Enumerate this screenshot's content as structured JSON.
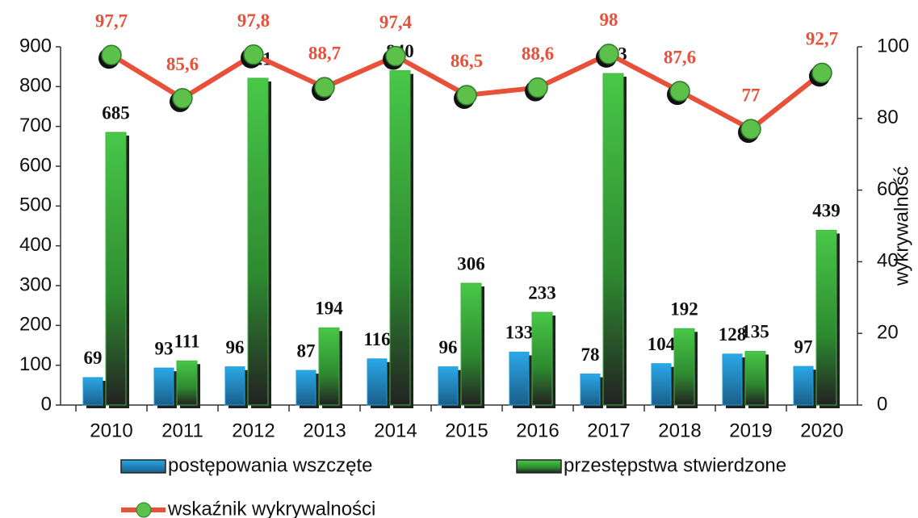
{
  "chart_data": {
    "type": "bar",
    "categories": [
      "2010",
      "2011",
      "2012",
      "2013",
      "2014",
      "2015",
      "2016",
      "2017",
      "2018",
      "2019",
      "2020"
    ],
    "series": [
      {
        "name": "postępowania wszczęte",
        "color": "#1e9fd8",
        "type": "bar",
        "values": [
          69,
          93,
          96,
          87,
          116,
          96,
          133,
          78,
          104,
          128,
          97
        ]
      },
      {
        "name": "przestępstwa stwierdzone",
        "color": "#3fb53f",
        "type": "bar",
        "values": [
          685,
          111,
          821,
          194,
          840,
          306,
          233,
          833,
          192,
          135,
          439
        ]
      },
      {
        "name": "wskaźnik wykrywalności",
        "color": "#e8503a",
        "type": "line",
        "axis": "y2",
        "marker_color": "#5cc04a",
        "values": [
          97.7,
          85.6,
          97.8,
          88.7,
          97.4,
          86.5,
          88.6,
          98,
          87.6,
          77,
          92.7
        ],
        "value_labels": [
          "97,7",
          "85,6",
          "97,8",
          "88,7",
          "97,4",
          "86,5",
          "88,6",
          "98",
          "87,6",
          "77",
          "92,7"
        ]
      }
    ],
    "ylim": [
      0,
      900
    ],
    "yticks": [
      0,
      100,
      200,
      300,
      400,
      500,
      600,
      700,
      800,
      900
    ],
    "y2lim": [
      0,
      100
    ],
    "y2ticks": [
      0,
      20,
      40,
      60,
      80,
      100
    ],
    "y2label": "wykrywalność",
    "grid": false,
    "legend": "bottom"
  }
}
